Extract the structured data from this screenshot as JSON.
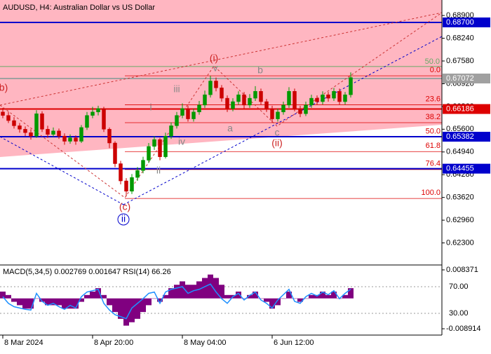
{
  "chart_data": [
    {
      "type": "candlestick",
      "title": "AUDUSD, H4:  Australian Dollar vs US Dollar",
      "xlim": [
        -0.5,
        78.25
      ],
      "ylim": [
        0.6166,
        0.6935
      ],
      "yticks": [
        {
          "value": 0.689,
          "label": "0.68900"
        },
        {
          "value": 0.6824,
          "label": "0.68240"
        },
        {
          "value": 0.6758,
          "label": "0.67580"
        },
        {
          "value": 0.6692,
          "label": "0.66920"
        },
        {
          "value": 0.6626,
          "label": "0.66260"
        },
        {
          "value": 0.656,
          "label": "0.65600"
        },
        {
          "value": 0.6494,
          "label": "0.64940"
        },
        {
          "value": 0.6428,
          "label": "0.64280"
        },
        {
          "value": 0.6362,
          "label": "0.63620"
        },
        {
          "value": 0.6296,
          "label": "0.62960"
        },
        {
          "value": 0.623,
          "label": "0.62300"
        }
      ],
      "up_color": "#009900",
      "down_color": "#cc0000",
      "zone_color": "#ffb6c1",
      "open": [
        0.661,
        0.66,
        0.6585,
        0.657,
        0.656,
        0.655,
        0.654,
        0.6605,
        0.656,
        0.6545,
        0.6555,
        0.654,
        0.6525,
        0.6535,
        0.6525,
        0.6565,
        0.66,
        0.661,
        0.662,
        0.656,
        0.652,
        0.646,
        0.641,
        0.638,
        0.642,
        0.644,
        0.647,
        0.651,
        0.653,
        0.648,
        0.654,
        0.657,
        0.66,
        0.662,
        0.659,
        0.661,
        0.663,
        0.666,
        0.67,
        0.668,
        0.665,
        0.662,
        0.664,
        0.666,
        0.663,
        0.665,
        0.667,
        0.664,
        0.662,
        0.659,
        0.661,
        0.663,
        0.667,
        0.662,
        0.6605,
        0.663,
        0.665,
        0.664,
        0.666,
        0.665,
        0.667,
        0.664,
        0.666
      ],
      "high": [
        0.6622,
        0.661,
        0.6595,
        0.6578,
        0.6568,
        0.656,
        0.6615,
        0.6612,
        0.657,
        0.6565,
        0.6562,
        0.6548,
        0.6545,
        0.6542,
        0.6572,
        0.661,
        0.6625,
        0.6628,
        0.6625,
        0.6565,
        0.6525,
        0.6468,
        0.6418,
        0.643,
        0.645,
        0.648,
        0.652,
        0.654,
        0.6535,
        0.655,
        0.658,
        0.661,
        0.6635,
        0.6628,
        0.662,
        0.6642,
        0.6672,
        0.6715,
        0.671,
        0.6688,
        0.6658,
        0.665,
        0.667,
        0.6668,
        0.6662,
        0.6685,
        0.6678,
        0.6648,
        0.6628,
        0.662,
        0.664,
        0.6682,
        0.6678,
        0.6628,
        0.664,
        0.666,
        0.6658,
        0.667,
        0.6668,
        0.668,
        0.6678,
        0.6668,
        0.6725
      ],
      "low": [
        0.6592,
        0.6578,
        0.6562,
        0.655,
        0.654,
        0.653,
        0.6535,
        0.6552,
        0.6535,
        0.6538,
        0.6532,
        0.6515,
        0.6518,
        0.6515,
        0.652,
        0.6558,
        0.6592,
        0.66,
        0.6552,
        0.6505,
        0.645,
        0.64,
        0.6365,
        0.6372,
        0.641,
        0.6432,
        0.6462,
        0.65,
        0.647,
        0.6475,
        0.6532,
        0.6562,
        0.6592,
        0.6582,
        0.6582,
        0.6602,
        0.6622,
        0.6652,
        0.667,
        0.664,
        0.661,
        0.6612,
        0.6632,
        0.662,
        0.6622,
        0.6642,
        0.6632,
        0.661,
        0.658,
        0.6582,
        0.6602,
        0.6622,
        0.6612,
        0.6595,
        0.6598,
        0.6622,
        0.6632,
        0.6632,
        0.664,
        0.6642,
        0.6632,
        0.6632,
        0.6652
      ],
      "close": [
        0.66,
        0.6585,
        0.657,
        0.656,
        0.655,
        0.654,
        0.6605,
        0.656,
        0.6545,
        0.6555,
        0.654,
        0.6525,
        0.6535,
        0.6525,
        0.6565,
        0.66,
        0.661,
        0.662,
        0.656,
        0.652,
        0.646,
        0.641,
        0.638,
        0.642,
        0.644,
        0.647,
        0.651,
        0.653,
        0.648,
        0.654,
        0.657,
        0.66,
        0.662,
        0.659,
        0.661,
        0.663,
        0.666,
        0.67,
        0.668,
        0.665,
        0.662,
        0.664,
        0.666,
        0.663,
        0.665,
        0.667,
        0.664,
        0.662,
        0.659,
        0.661,
        0.663,
        0.667,
        0.662,
        0.6605,
        0.663,
        0.665,
        0.664,
        0.666,
        0.665,
        0.667,
        0.664,
        0.666,
        0.671
      ],
      "price_levels": [
        {
          "value": 0.687,
          "label": "0.68700",
          "color": "#0000cc"
        },
        {
          "value": 0.67072,
          "label": "0.67072",
          "color": "#a0a0a0"
        },
        {
          "value": 0.66186,
          "label": "0.66186",
          "color": "#dd0000"
        },
        {
          "value": 0.65382,
          "label": "0.65382",
          "color": "#0000cc"
        },
        {
          "value": 0.64455,
          "label": "0.64455",
          "color": "#0000cc"
        }
      ],
      "fib_levels": [
        {
          "value": 0.6715,
          "label": "0.0"
        },
        {
          "value": 0.6631,
          "label": "23.6"
        },
        {
          "value": 0.6579,
          "label": "38.2"
        },
        {
          "value": 0.6537,
          "label": "50.0"
        },
        {
          "value": 0.6495,
          "label": "61.8"
        },
        {
          "value": 0.6443,
          "label": "76.4"
        },
        {
          "value": 0.6359,
          "label": "100.0"
        }
      ],
      "fib_color": "#dd0000",
      "guide_level": {
        "value": 0.6742,
        "label": "50.0",
        "color": "#66aa66"
      },
      "annotations": [
        "(i)",
        "v",
        "iii",
        "i",
        "iv",
        "ii",
        "(c)",
        "ii",
        "b",
        "a",
        "c",
        "(ii)",
        "b)"
      ]
    },
    {
      "type": "bar",
      "title": "MACD(5,34,5) 0.002769 0.001647 RSI(14) 66.26",
      "xlim": [
        -0.5,
        78.25
      ],
      "ylim": [
        -0.00912,
        0.0094
      ],
      "y2lim": [
        5.8,
        100.5
      ],
      "yticks": [
        {
          "value": 0.008371,
          "label": "0.008371"
        },
        {
          "value": -0.008914,
          "label": "-0.008914"
        }
      ],
      "y2ticks": [
        {
          "value": 70,
          "label": "70.00"
        },
        {
          "value": 30,
          "label": "30.00"
        }
      ],
      "xticks": [
        {
          "value": 0,
          "label": "8 Mar 2024"
        },
        {
          "value": 16,
          "label": "8 Apr 20:00"
        },
        {
          "value": 32,
          "label": "8 May 04:00"
        },
        {
          "value": 48,
          "label": "6 Jun 12:00"
        }
      ],
      "series": [
        {
          "color": "#800080",
          "values": [
            0.002,
            0.001,
            -0.001,
            -0.002,
            -0.003,
            -0.003,
            0,
            -0.001,
            -0.002,
            -0.002,
            -0.002,
            -0.003,
            -0.003,
            -0.003,
            -0.001,
            0.001,
            0.002,
            0.003,
            0.001,
            -0.002,
            -0.004,
            -0.006,
            -0.008,
            -0.007,
            -0.006,
            -0.004,
            -0.002,
            0,
            -0.001,
            0.001,
            0.003,
            0.004,
            0.005,
            0.004,
            0.004,
            0.005,
            0.006,
            0.007,
            0.006,
            0.004,
            0.001,
            0.001,
            0.002,
            0,
            0.001,
            0.002,
            0,
            -0.001,
            -0.003,
            -0.002,
            0,
            0.002,
            0,
            -0.001,
            0,
            0.001,
            0.001,
            0.002,
            0.001,
            0.002,
            0,
            0.001,
            0.003
          ]
        },
        {
          "color": "#1e90ff",
          "axis": "y2",
          "values": [
            55,
            45,
            40,
            38,
            36,
            35,
            60,
            48,
            42,
            45,
            40,
            36,
            42,
            38,
            55,
            62,
            64,
            66,
            45,
            35,
            28,
            25,
            22,
            38,
            45,
            52,
            60,
            62,
            45,
            62,
            66,
            68,
            70,
            60,
            64,
            66,
            70,
            74,
            62,
            52,
            45,
            55,
            60,
            50,
            57,
            62,
            50,
            45,
            38,
            50,
            58,
            66,
            48,
            45,
            55,
            60,
            56,
            62,
            58,
            64,
            52,
            60,
            66.26
          ]
        }
      ]
    }
  ]
}
